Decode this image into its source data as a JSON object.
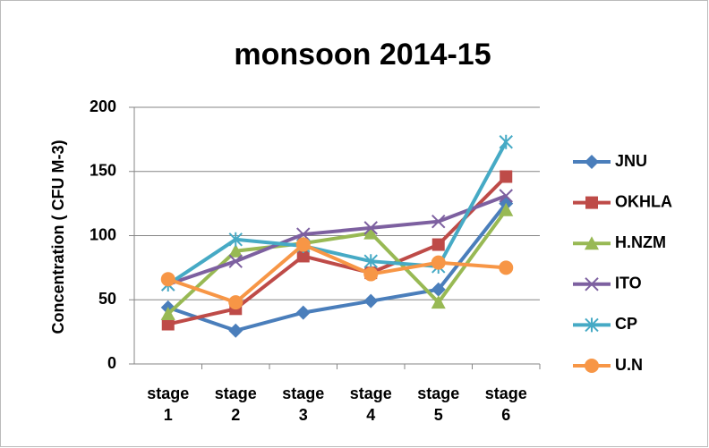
{
  "chart_data": {
    "type": "line",
    "title": "monsoon 2014-15",
    "y_label": "Concentration ( CFU M-3)",
    "categories": [
      "stage 1",
      "stage 2",
      "stage 3",
      "stage 4",
      "stage 5",
      "stage 6"
    ],
    "series": [
      {
        "name": "JNU",
        "color": "#4a7ebb",
        "marker": "diamond",
        "values": [
          44,
          26,
          40,
          49,
          58,
          125
        ]
      },
      {
        "name": "OKHLA",
        "color": "#be4b48",
        "marker": "square",
        "values": [
          31,
          43,
          84,
          71,
          93,
          146
        ]
      },
      {
        "name": "H.NZM",
        "color": "#98b954",
        "marker": "triangle",
        "values": [
          39,
          88,
          94,
          102,
          48,
          120
        ]
      },
      {
        "name": "ITO",
        "color": "#7d60a0",
        "marker": "x",
        "values": [
          62,
          80,
          101,
          106,
          111,
          131
        ]
      },
      {
        "name": "CP",
        "color": "#46aac5",
        "marker": "star",
        "values": [
          62,
          97,
          92,
          80,
          76,
          173
        ]
      },
      {
        "name": "U.N",
        "color": "#f79646",
        "marker": "circle",
        "values": [
          66,
          48,
          93,
          70,
          79,
          75
        ]
      }
    ],
    "ylim": [
      0,
      200
    ],
    "yticks": [
      0,
      50,
      100,
      150,
      200
    ],
    "grid": true,
    "legend": "right"
  }
}
